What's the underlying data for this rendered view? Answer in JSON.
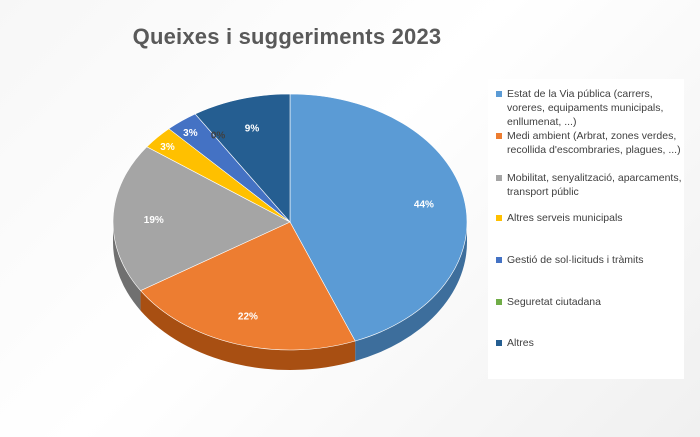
{
  "chart_data": {
    "type": "pie",
    "title": "Queixes i suggeriments 2023",
    "slices": [
      {
        "label": "Estat de la Via pública (carrers, voreres, equipaments municipals, enllumenat, ...)",
        "value": 44,
        "display": "44%",
        "color": "#5b9bd5",
        "side": "#3d6e9c"
      },
      {
        "label": "Medi ambient (Arbrat, zones verdes, recollida d'escombraries, plagues, ...)",
        "value": 22,
        "display": "22%",
        "color": "#ed7d31",
        "side": "#a84f12"
      },
      {
        "label": "Mobilitat, senyalització, aparcaments, transport públic",
        "value": 19,
        "display": "19%",
        "color": "#a5a5a5",
        "side": "#707070"
      },
      {
        "label": "Altres serveis municipals",
        "value": 3,
        "display": "3%",
        "color": "#ffc000",
        "side": "#b38600"
      },
      {
        "label": "Gestió de sol·licituds i tràmits",
        "value": 3,
        "display": "3%",
        "color": "#4472c4",
        "side": "#2a4f8f"
      },
      {
        "label": "Seguretat ciutadana",
        "value": 0,
        "display": "0%",
        "color": "#70ad47",
        "side": "#4b7a2e"
      },
      {
        "label": "Altres",
        "value": 9,
        "display": "9%",
        "color": "#255e91",
        "side": "#173c5e"
      }
    ],
    "legend_position": "right"
  }
}
